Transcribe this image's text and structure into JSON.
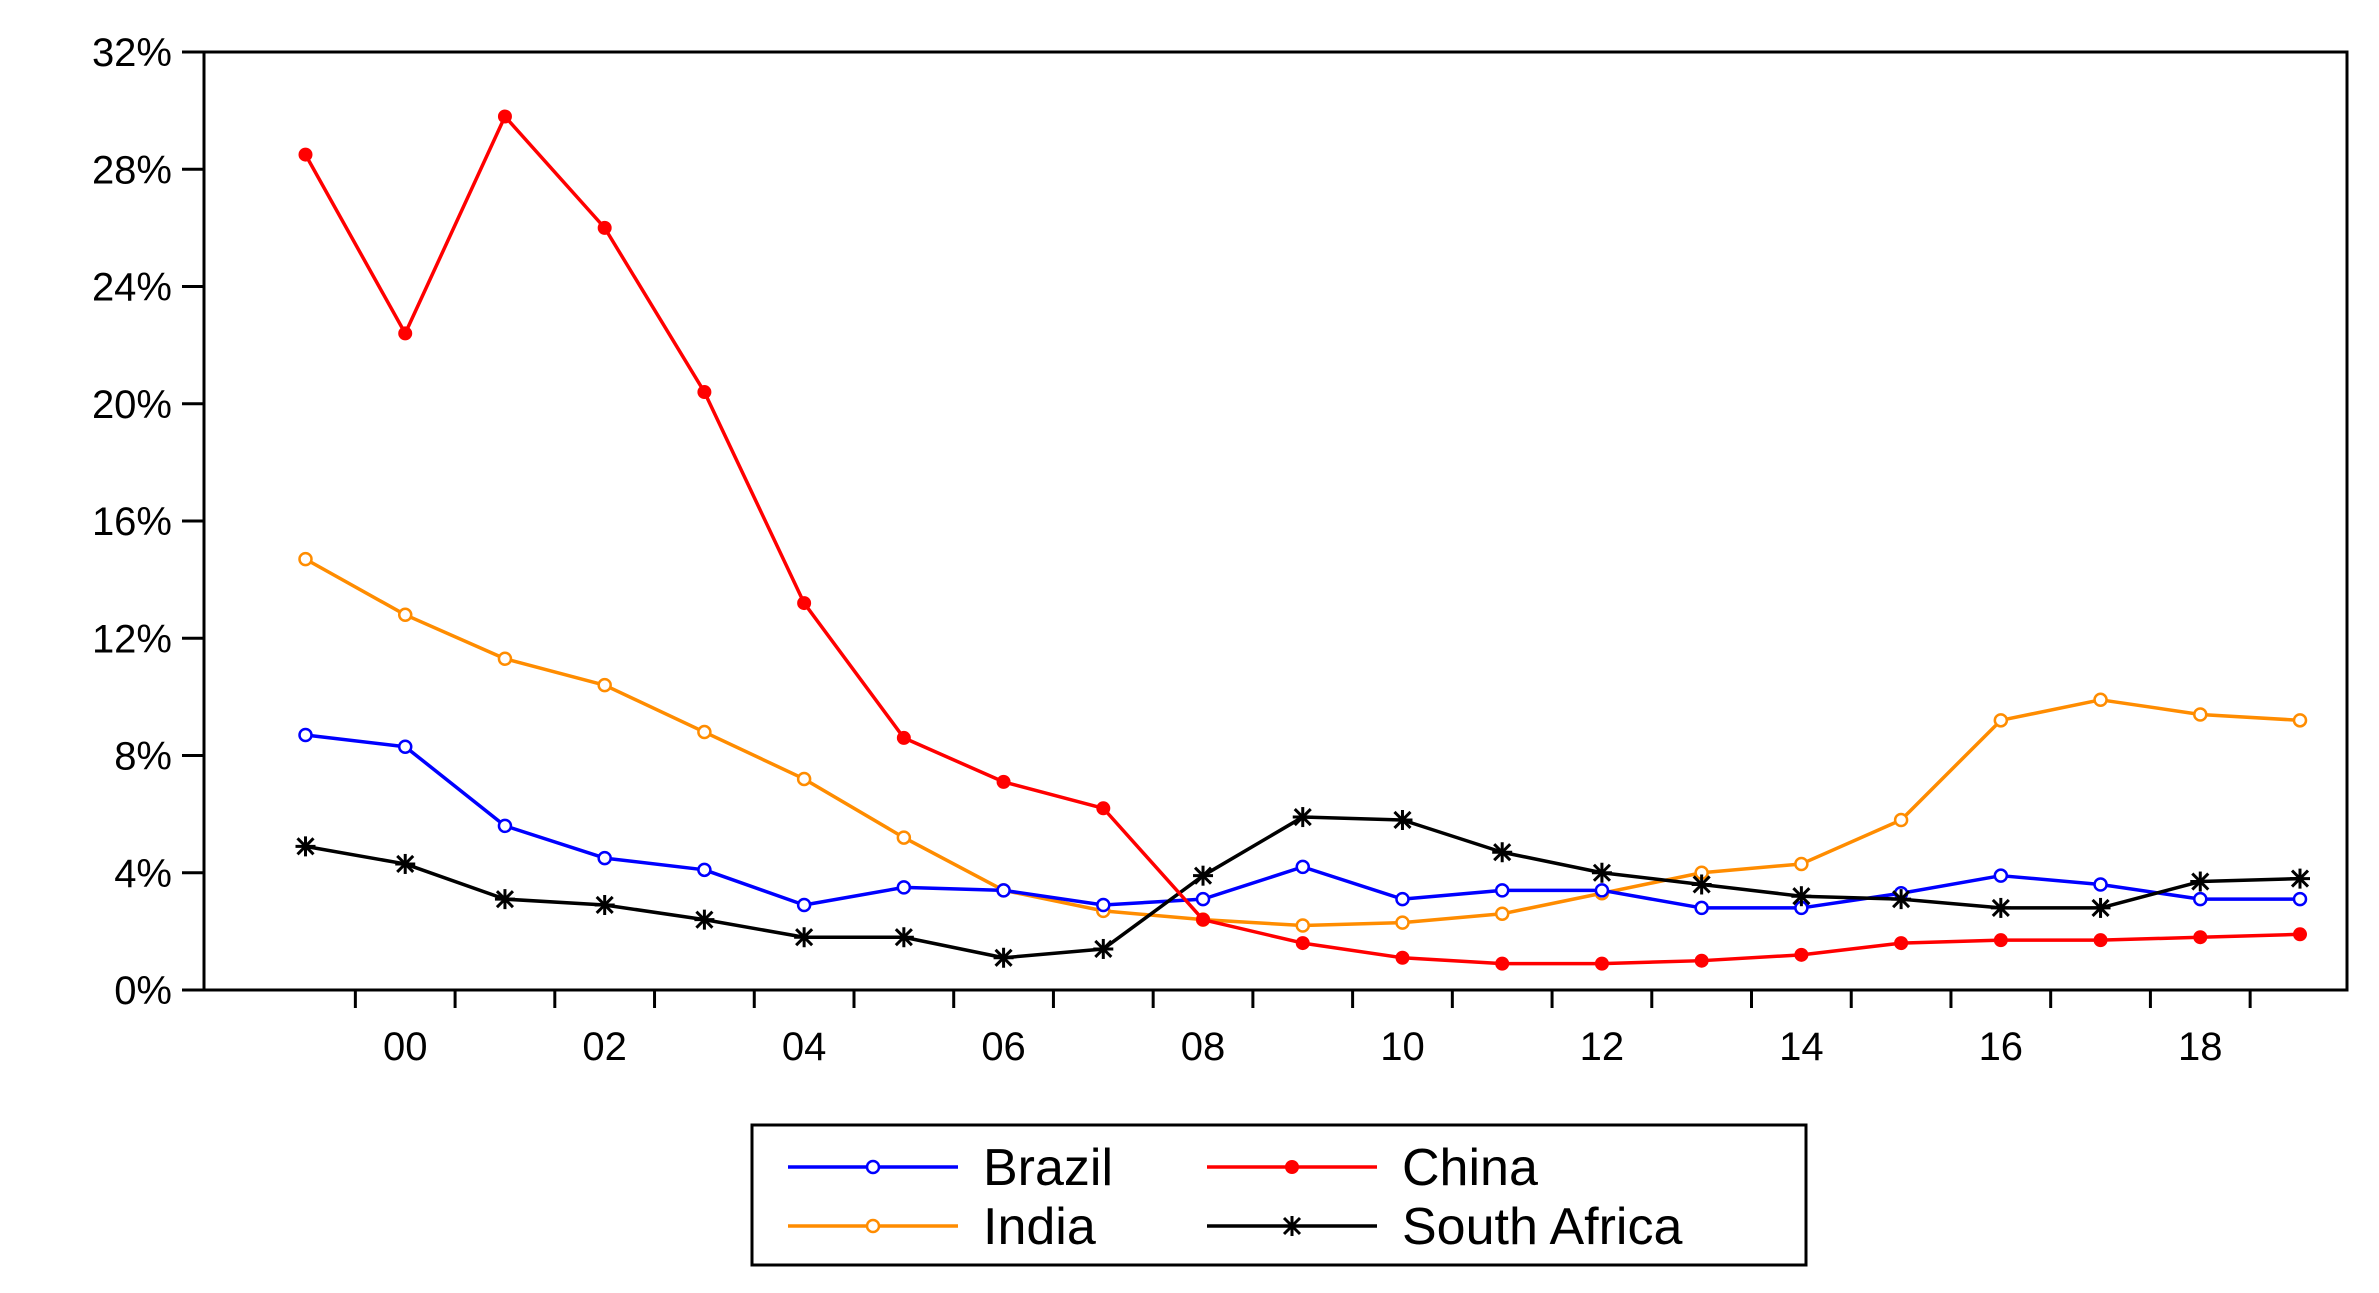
{
  "chart_data": {
    "type": "line",
    "title": "",
    "xlabel": "",
    "ylabel": "",
    "x": [
      1999,
      2000,
      2001,
      2002,
      2003,
      2004,
      2005,
      2006,
      2007,
      2008,
      2009,
      2010,
      2011,
      2012,
      2013,
      2014,
      2015,
      2016,
      2017,
      2018,
      2019
    ],
    "xlim": [
      1998,
      2019.5
    ],
    "x_tick_labels": [
      {
        "value": 2000,
        "label": "00"
      },
      {
        "value": 2002,
        "label": "02"
      },
      {
        "value": 2004,
        "label": "04"
      },
      {
        "value": 2006,
        "label": "06"
      },
      {
        "value": 2008,
        "label": "08"
      },
      {
        "value": 2010,
        "label": "10"
      },
      {
        "value": 2012,
        "label": "12"
      },
      {
        "value": 2014,
        "label": "14"
      },
      {
        "value": 2016,
        "label": "16"
      },
      {
        "value": 2018,
        "label": "18"
      }
    ],
    "ylim": [
      0,
      32
    ],
    "y_ticks": [
      {
        "value": 0,
        "label": "0%"
      },
      {
        "value": 4,
        "label": "4%"
      },
      {
        "value": 8,
        "label": "8%"
      },
      {
        "value": 12,
        "label": "12%"
      },
      {
        "value": 16,
        "label": "16%"
      },
      {
        "value": 20,
        "label": "20%"
      },
      {
        "value": 24,
        "label": "24%"
      },
      {
        "value": 28,
        "label": "28%"
      },
      {
        "value": 32,
        "label": "32%"
      }
    ],
    "grid": false,
    "legend_position": "bottom-center",
    "series": [
      {
        "name": "Brazil",
        "color": "#0000ff",
        "marker": "open-circle",
        "values": [
          8.7,
          8.3,
          5.6,
          4.5,
          4.1,
          2.9,
          3.5,
          3.4,
          2.9,
          3.1,
          4.2,
          3.1,
          3.4,
          3.4,
          2.8,
          2.8,
          3.3,
          3.9,
          3.6,
          3.1,
          3.1
        ]
      },
      {
        "name": "China",
        "color": "#ff0000",
        "marker": "filled-circle",
        "values": [
          28.5,
          22.4,
          29.8,
          26.0,
          20.4,
          13.2,
          8.6,
          7.1,
          6.2,
          2.4,
          1.6,
          1.1,
          0.9,
          0.9,
          1.0,
          1.2,
          1.6,
          1.7,
          1.7,
          1.8,
          1.9
        ]
      },
      {
        "name": "India",
        "color": "#ff8c00",
        "marker": "open-circle",
        "values": [
          14.7,
          12.8,
          11.3,
          10.4,
          8.8,
          7.2,
          5.2,
          3.4,
          2.7,
          2.4,
          2.2,
          2.3,
          2.6,
          3.3,
          4.0,
          4.3,
          5.8,
          9.2,
          9.9,
          9.4,
          9.2
        ]
      },
      {
        "name": "South Africa",
        "color": "#000000",
        "marker": "asterisk",
        "values": [
          4.9,
          4.3,
          3.1,
          2.9,
          2.4,
          1.8,
          1.8,
          1.1,
          1.4,
          3.9,
          5.9,
          5.8,
          4.7,
          4.0,
          3.6,
          3.2,
          3.1,
          2.8,
          2.8,
          3.7,
          3.8
        ]
      }
    ],
    "legend_rows": [
      [
        "Brazil",
        "China"
      ],
      [
        "India",
        "South Africa"
      ]
    ]
  }
}
